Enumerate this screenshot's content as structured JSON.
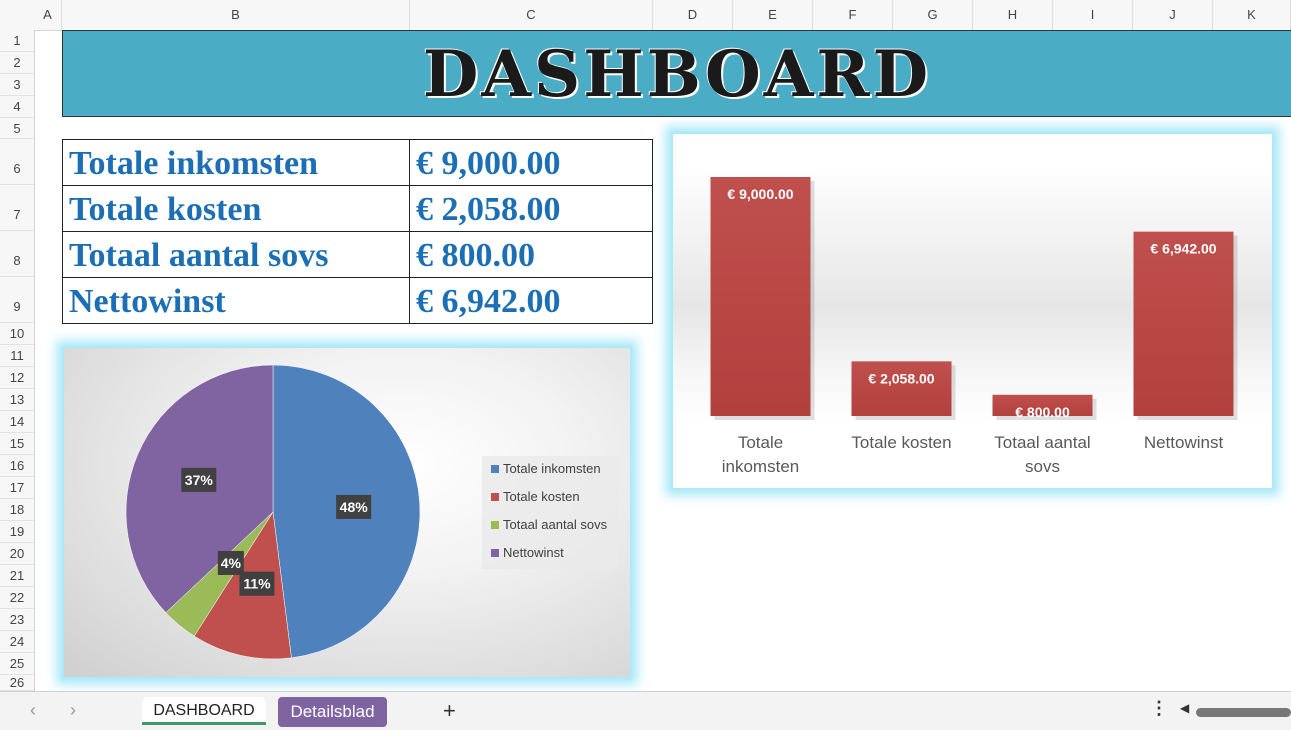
{
  "columns": [
    "A",
    "B",
    "C",
    "D",
    "E",
    "F",
    "G",
    "H",
    "I",
    "J",
    "K"
  ],
  "rows": [
    "1",
    "2",
    "3",
    "4",
    "5",
    "6",
    "7",
    "8",
    "9",
    "10",
    "11",
    "12",
    "13",
    "14",
    "15",
    "16",
    "17",
    "18",
    "19",
    "20",
    "21",
    "22",
    "23",
    "24",
    "25",
    "26"
  ],
  "banner": {
    "title": "DASHBOARD",
    "color": "#4bacc6"
  },
  "summary": [
    {
      "label": "Totale inkomsten",
      "value": "€ 9,000.00"
    },
    {
      "label": "Totale kosten",
      "value": "€ 2,058.00"
    },
    {
      "label": "Totaal aantal sovs",
      "value": "€ 800.00"
    },
    {
      "label": "Nettowinst",
      "value": "€ 6,942.00"
    }
  ],
  "chart_data": [
    {
      "type": "bar",
      "categories": [
        "Totale inkomsten",
        "Totale kosten",
        "Totaal aantal sovs",
        "Nettowinst"
      ],
      "values": [
        9000,
        2058,
        800,
        6942
      ],
      "data_labels": [
        "€ 9,000.00",
        "€ 2,058.00",
        "€ 800.00",
        "€ 6,942.00"
      ],
      "ylim": [
        0,
        9000
      ],
      "color": "#c0504d",
      "grid": false
    },
    {
      "type": "pie",
      "categories": [
        "Totale inkomsten",
        "Totale kosten",
        "Totaal aantal sovs",
        "Nettowinst"
      ],
      "values": [
        48,
        11,
        4,
        37
      ],
      "data_labels": [
        "48%",
        "11%",
        "4%",
        "37%"
      ],
      "colors": [
        "#4f81bd",
        "#c0504d",
        "#9bbb59",
        "#8064a2"
      ],
      "legend": "right"
    }
  ],
  "tabs": [
    {
      "label": "DASHBOARD",
      "active": true
    },
    {
      "label": "Detailsblad",
      "active": false,
      "color": "#8064a2"
    }
  ],
  "icons": {
    "prev": "chevron-left-icon",
    "next": "chevron-right-icon",
    "add": "plus-icon",
    "more": "vertical-ellipsis-icon",
    "scroll_left": "triangle-left-icon"
  }
}
